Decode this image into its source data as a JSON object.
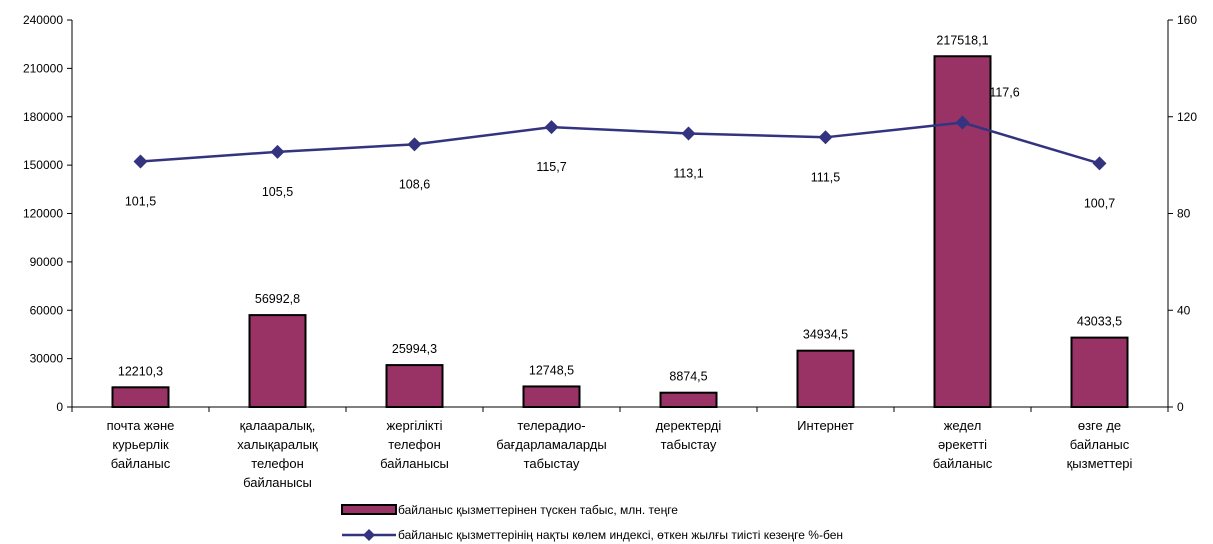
{
  "chart_data": {
    "type": "bar+line",
    "categories": [
      [
        "почта және",
        "курьерлік",
        "байланыс"
      ],
      [
        "қалааралық,",
        "халықаралық",
        "телефон",
        "байланысы"
      ],
      [
        "жергілікті",
        "телефон",
        "байланысы"
      ],
      [
        "телерадио-",
        "бағдарламаларды",
        "табыстау"
      ],
      [
        "деректерді",
        "табыстау"
      ],
      [
        "Интернет"
      ],
      [
        "жедел",
        "әрекетті",
        "байланыс"
      ],
      [
        "өзге де",
        "байланыс",
        "қызметтері"
      ]
    ],
    "series": [
      {
        "name": "байланыс қызметтерінен түскен табыс, млн. теңге",
        "type": "bar",
        "axis": "left",
        "values": [
          12210.3,
          56992.8,
          25994.3,
          12748.5,
          8874.5,
          34934.5,
          217518.1,
          43033.5
        ],
        "labels": [
          "12210,3",
          "56992,8",
          "25994,3",
          "12748,5",
          "8874,5",
          "34934,5",
          "217518,1",
          "43033,5"
        ],
        "color": "#993366"
      },
      {
        "name": "байланыс қызметтерінің нақты көлем индексі, өткен жылғы тиісті кезеңге %-бен",
        "type": "line",
        "axis": "right",
        "values": [
          101.5,
          105.5,
          108.6,
          115.7,
          113.1,
          111.5,
          117.6,
          100.7
        ],
        "labels": [
          "101,5",
          "105,5",
          "108,6",
          "115,7",
          "113,1",
          "111,5",
          "117,6",
          "100,7"
        ],
        "color": "#333380",
        "marker": "diamond"
      }
    ],
    "y_left": {
      "min": 0,
      "max": 240000,
      "ticks": [
        0,
        30000,
        60000,
        90000,
        120000,
        150000,
        180000,
        210000,
        240000
      ]
    },
    "y_right": {
      "min": 0,
      "max": 160,
      "ticks": [
        0,
        40,
        80,
        120,
        160
      ]
    },
    "grid": false,
    "legend": "bottom"
  }
}
